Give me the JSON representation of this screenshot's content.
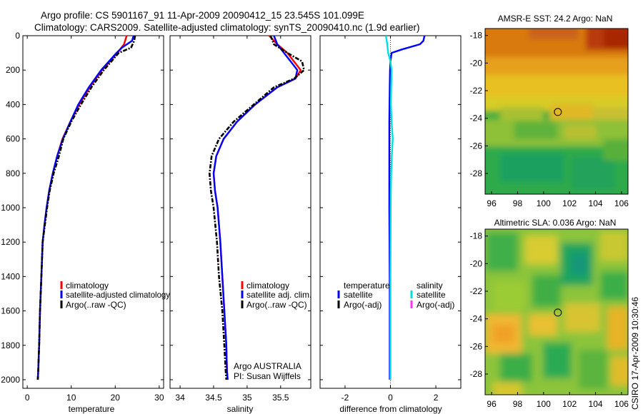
{
  "title": {
    "line1": "Argo profile: CS 5901167_91 11-Apr-2009 20090412_15 23.545S 101.099E",
    "line2": "Climatology: CARS2009. Satellite-adjusted climatology: synTS_20090410.nc (1.9d earlier)"
  },
  "colors": {
    "climatology": "#ff0000",
    "satellite": "#0000ff",
    "argo": "#000000",
    "sal_satellite": "#00e0e0",
    "sal_argo": "#ff33ff"
  },
  "side_label": "CSIRO 17-Apr-2009 10:30:46",
  "chart_data": [
    {
      "id": "temperature",
      "type": "line",
      "xlabel": "temperature",
      "xlim": [
        -1,
        31
      ],
      "ylim": [
        0,
        2050
      ],
      "y_inverted": true,
      "xticks": [
        0,
        10,
        20,
        30
      ],
      "yticks": [
        0,
        200,
        400,
        600,
        800,
        1000,
        1200,
        1400,
        1600,
        1800,
        2000
      ],
      "series": [
        {
          "name": "climatology",
          "style": "solid",
          "color": "#ff0000",
          "x": [
            22.6,
            22.0,
            20.5,
            17.0,
            14.2,
            11.8,
            9.8,
            8.0,
            6.8,
            5.8,
            5.0,
            4.4,
            3.9,
            3.5,
            3.2,
            2.9,
            2.7,
            2.5,
            2.4
          ],
          "y": [
            0,
            50,
            100,
            200,
            300,
            400,
            500,
            600,
            700,
            800,
            900,
            1000,
            1100,
            1200,
            1400,
            1600,
            1800,
            1950,
            2000
          ]
        },
        {
          "name": "satellite-adjusted climatology",
          "style": "solid",
          "color": "#0000ff",
          "x": [
            24.2,
            23.8,
            21.5,
            20.3,
            16.8,
            14.0,
            11.6,
            9.8,
            8.1,
            6.8,
            5.8,
            5.0,
            4.4,
            3.9,
            3.5,
            3.2,
            2.9,
            2.7,
            2.5,
            2.4
          ],
          "y": [
            0,
            30,
            70,
            100,
            200,
            300,
            400,
            500,
            600,
            700,
            800,
            900,
            1000,
            1100,
            1200,
            1400,
            1600,
            1800,
            1950,
            2000
          ]
        },
        {
          "name": "Argo(..raw -QC)",
          "style": "dash",
          "color": "#000000",
          "x": [
            24.5,
            24.3,
            23.6,
            20.8,
            17.4,
            14.6,
            12.2,
            10.0,
            8.2,
            7.2,
            6.0,
            5.1,
            4.5,
            4.0,
            3.5,
            3.2,
            2.9,
            2.7,
            2.5,
            2.4
          ],
          "y": [
            0,
            30,
            70,
            100,
            200,
            300,
            400,
            500,
            600,
            700,
            800,
            900,
            1000,
            1100,
            1200,
            1400,
            1600,
            1800,
            1950,
            2000
          ]
        }
      ],
      "legend": [
        "climatology",
        "satellite-adjusted climatology",
        "Argo(..raw -QC)"
      ]
    },
    {
      "id": "salinity",
      "type": "line",
      "xlabel": "salinity",
      "xlim": [
        33.85,
        35.95
      ],
      "ylim": [
        0,
        2050
      ],
      "y_inverted": true,
      "xticks": [
        34,
        34.5,
        35,
        35.5
      ],
      "yticks": [
        0,
        200,
        400,
        600,
        800,
        1000,
        1200,
        1400,
        1600,
        1800,
        2000
      ],
      "series": [
        {
          "name": "climatology",
          "style": "solid",
          "color": "#ff0000",
          "x": [
            35.33,
            35.45,
            35.6,
            35.7,
            35.8,
            35.72,
            35.45,
            35.12,
            34.85,
            34.65,
            34.54,
            34.5,
            34.52,
            34.56,
            34.6,
            34.63,
            34.66,
            34.69,
            34.7,
            34.71
          ],
          "y": [
            0,
            50,
            100,
            150,
            200,
            250,
            300,
            400,
            500,
            600,
            700,
            800,
            900,
            1000,
            1200,
            1400,
            1600,
            1800,
            1950,
            2000
          ]
        },
        {
          "name": "satellite adj. clim.",
          "style": "solid",
          "color": "#0000ff",
          "x": [
            35.4,
            35.45,
            35.55,
            35.65,
            35.75,
            35.72,
            35.45,
            35.12,
            34.85,
            34.65,
            34.54,
            34.5,
            34.52,
            34.56,
            34.6,
            34.63,
            34.66,
            34.69,
            34.7,
            34.71
          ],
          "y": [
            0,
            50,
            100,
            150,
            200,
            250,
            300,
            400,
            500,
            600,
            700,
            800,
            900,
            1000,
            1200,
            1400,
            1600,
            1800,
            1950,
            2000
          ]
        },
        {
          "name": "Argo(..raw -QC)",
          "style": "dash",
          "color": "#000000",
          "x": [
            35.35,
            35.4,
            35.6,
            35.82,
            35.85,
            35.7,
            35.4,
            35.1,
            34.8,
            34.58,
            34.47,
            34.44,
            34.46,
            34.5,
            34.55,
            34.58,
            34.63,
            34.66,
            34.68,
            34.69
          ],
          "y": [
            0,
            50,
            100,
            150,
            200,
            250,
            300,
            400,
            500,
            600,
            700,
            800,
            900,
            1000,
            1200,
            1400,
            1600,
            1800,
            1950,
            2000
          ]
        }
      ],
      "legend": [
        "climatology",
        "satellite adj. clim.",
        "Argo(..raw -QC)"
      ],
      "annotation": [
        "Argo AUSTRALIA",
        "PI: Susan Wijffels"
      ]
    },
    {
      "id": "difference",
      "type": "line",
      "xlabel": "difference from climatology",
      "xlim": [
        -3.1,
        3.1
      ],
      "ylim": [
        0,
        2050
      ],
      "y_inverted": true,
      "xticks": [
        -2,
        0,
        2
      ],
      "yticks": [
        0,
        200,
        400,
        600,
        800,
        1000,
        1200,
        1400,
        1600,
        1800,
        2000
      ],
      "series": [
        {
          "name": "temperature satellite",
          "style": "solid",
          "color": "#0000ff",
          "x": [
            1.5,
            1.45,
            1.3,
            0.5,
            0.05,
            0.0,
            -0.02,
            -0.03,
            -0.05,
            -0.05,
            -0.05,
            -0.04,
            -0.03,
            -0.03,
            -0.03
          ],
          "y": [
            0,
            30,
            50,
            80,
            100,
            150,
            200,
            300,
            500,
            800,
            1000,
            1200,
            1500,
            1800,
            2000
          ]
        },
        {
          "name": "salinity satellite",
          "style": "solid",
          "color": "#00e0e0",
          "x": [
            -0.2,
            -0.15,
            -0.1,
            0.0,
            0.05,
            0.03,
            0.02,
            0.05,
            0.1,
            0.06,
            0.03,
            0.02,
            0.01,
            0.0,
            0.0,
            0.0
          ],
          "y": [
            0,
            40,
            100,
            150,
            200,
            300,
            400,
            500,
            600,
            700,
            800,
            900,
            1000,
            1400,
            1800,
            2000
          ]
        }
      ],
      "legend_temperature_title": "temperature",
      "legend_salinity_title": "salinity",
      "legend_temperature": [
        "satellite",
        "Argo(-adj)"
      ],
      "legend_salinity": [
        "satellite",
        "Argo(-adj)"
      ]
    },
    {
      "id": "sst-map",
      "type": "heatmap",
      "title": "AMSR-E SST: 24.2  Argo: NaN",
      "xlim": [
        95.5,
        106.5
      ],
      "ylim": [
        -29.5,
        -17.5
      ],
      "xticks": [
        96,
        98,
        100,
        102,
        104,
        106
      ],
      "yticks": [
        -18,
        -20,
        -22,
        -24,
        -26,
        -28
      ],
      "marker": {
        "lon": 101.099,
        "lat": -23.545
      }
    },
    {
      "id": "sla-map",
      "type": "heatmap",
      "title": "Altimetric SLA: 0.036  Argo: NaN",
      "xlim": [
        95.5,
        106.5
      ],
      "ylim": [
        -29.5,
        -17.5
      ],
      "xticks": [
        96,
        98,
        100,
        102,
        104,
        106
      ],
      "yticks": [
        -18,
        -20,
        -22,
        -24,
        -26,
        -28
      ],
      "marker": {
        "lon": 101.099,
        "lat": -23.545
      }
    }
  ]
}
